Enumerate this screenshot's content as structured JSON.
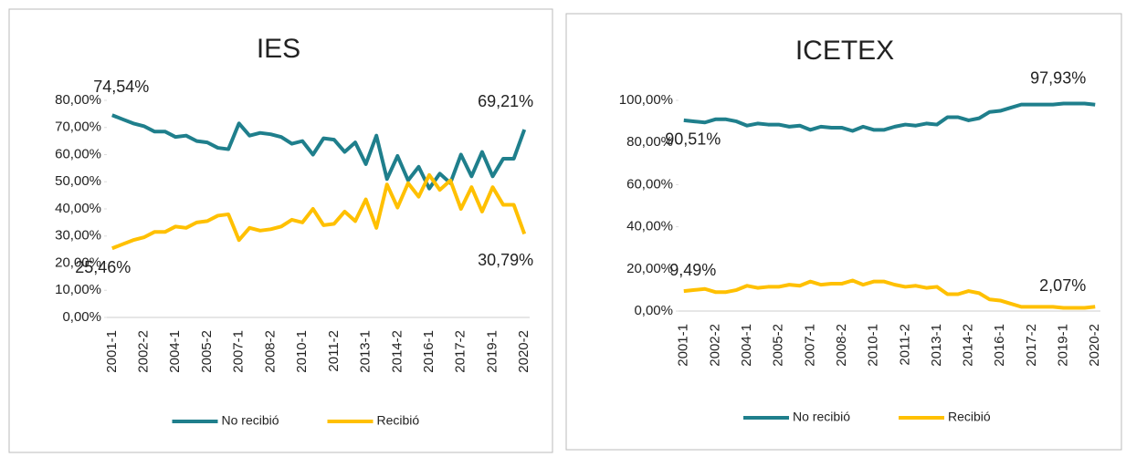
{
  "chart_data": [
    {
      "type": "line",
      "title": "IES",
      "categories": [
        "2001-1",
        null,
        null,
        "2002-2",
        null,
        null,
        "2004-1",
        null,
        null,
        "2005-2",
        null,
        null,
        "2007-1",
        null,
        null,
        "2008-2",
        null,
        null,
        "2010-1",
        null,
        null,
        "2011-2",
        null,
        null,
        "2013-1",
        null,
        null,
        "2014-2",
        null,
        null,
        "2016-1",
        null,
        null,
        "2017-2",
        null,
        null,
        "2019-1",
        null,
        null,
        "2020-2"
      ],
      "series": [
        {
          "name": "No recibió",
          "color": "#1f7f8c",
          "values": [
            74.54,
            73,
            71.5,
            70.5,
            68.5,
            68.5,
            66.5,
            67,
            65,
            64.5,
            62.5,
            62,
            71.5,
            67,
            68,
            67.5,
            66.5,
            64,
            65,
            60,
            66,
            65.5,
            61,
            64.5,
            56.5,
            67,
            51,
            59.5,
            50.5,
            55.5,
            47.5,
            53,
            49.5,
            60,
            52,
            61,
            52,
            58.5,
            58.5,
            69.21
          ],
          "value_labels": [
            "74,54%",
            null,
            null,
            null,
            null,
            null,
            null,
            null,
            null,
            null,
            null,
            null,
            null,
            null,
            null,
            null,
            null,
            null,
            null,
            null,
            null,
            null,
            null,
            null,
            null,
            null,
            null,
            null,
            null,
            null,
            null,
            null,
            null,
            null,
            null,
            null,
            null,
            null,
            null,
            "69,21%"
          ]
        },
        {
          "name": "Recibió",
          "color": "#ffc000",
          "values": [
            25.46,
            27,
            28.5,
            29.5,
            31.5,
            31.5,
            33.5,
            33,
            35,
            35.5,
            37.5,
            38,
            28.5,
            33,
            32,
            32.5,
            33.5,
            36,
            35,
            40,
            34,
            34.5,
            39,
            35.5,
            43.5,
            33,
            49,
            40.5,
            49.5,
            44.5,
            52.5,
            47,
            50.5,
            40,
            48,
            39,
            48,
            41.5,
            41.5,
            30.79
          ],
          "value_labels": [
            "25,46%",
            null,
            null,
            null,
            null,
            null,
            null,
            null,
            null,
            null,
            null,
            null,
            null,
            null,
            null,
            null,
            null,
            null,
            null,
            null,
            null,
            null,
            null,
            null,
            null,
            null,
            null,
            null,
            null,
            null,
            null,
            null,
            null,
            null,
            null,
            null,
            null,
            null,
            null,
            "30,79%"
          ]
        }
      ],
      "ylim": [
        0,
        80
      ],
      "yticks": [
        {
          "value": 0,
          "label": "0,00%"
        },
        {
          "value": 10,
          "label": "10,00%"
        },
        {
          "value": 20,
          "label": "20,00%"
        },
        {
          "value": 30,
          "label": "30,00%"
        },
        {
          "value": 40,
          "label": "40,00%"
        },
        {
          "value": 50,
          "label": "50,00%"
        },
        {
          "value": 60,
          "label": "60,00%"
        },
        {
          "value": 70,
          "label": "70,00%"
        },
        {
          "value": 80,
          "label": "80,00%"
        }
      ],
      "legend": "bottom"
    },
    {
      "type": "line",
      "title": "ICETEX",
      "categories": [
        "2001-1",
        null,
        null,
        "2002-2",
        null,
        null,
        "2004-1",
        null,
        null,
        "2005-2",
        null,
        null,
        "2007-1",
        null,
        null,
        "2008-2",
        null,
        null,
        "2010-1",
        null,
        null,
        "2011-2",
        null,
        null,
        "2013-1",
        null,
        null,
        "2014-2",
        null,
        null,
        "2016-1",
        null,
        null,
        "2017-2",
        null,
        null,
        "2019-1",
        null,
        null,
        "2020-2"
      ],
      "series": [
        {
          "name": "No recibió",
          "color": "#1f7f8c",
          "values": [
            90.51,
            90,
            89.5,
            91,
            91,
            90,
            88,
            89,
            88.5,
            88.5,
            87.5,
            88,
            86,
            87.5,
            87,
            87,
            85.5,
            87.5,
            86,
            86,
            87.5,
            88.5,
            88,
            89,
            88.5,
            92,
            92,
            90.5,
            91.5,
            94.5,
            95,
            96.5,
            98,
            98,
            98,
            98,
            98.5,
            98.5,
            98.5,
            97.93
          ],
          "value_labels": [
            "90,51%",
            null,
            null,
            null,
            null,
            null,
            null,
            null,
            null,
            null,
            null,
            null,
            null,
            null,
            null,
            null,
            null,
            null,
            null,
            null,
            null,
            null,
            null,
            null,
            null,
            null,
            null,
            null,
            null,
            null,
            null,
            null,
            null,
            null,
            null,
            null,
            null,
            null,
            null,
            "97,93%"
          ]
        },
        {
          "name": "Recibió",
          "color": "#ffc000",
          "values": [
            9.49,
            10,
            10.5,
            9,
            9,
            10,
            12,
            11,
            11.5,
            11.5,
            12.5,
            12,
            14,
            12.5,
            13,
            13,
            14.5,
            12.5,
            14,
            14,
            12.5,
            11.5,
            12,
            11,
            11.5,
            8,
            8,
            9.5,
            8.5,
            5.5,
            5,
            3.5,
            2,
            2,
            2,
            2,
            1.5,
            1.5,
            1.5,
            2.07
          ],
          "value_labels": [
            "9,49%",
            null,
            null,
            null,
            null,
            null,
            null,
            null,
            null,
            null,
            null,
            null,
            null,
            null,
            null,
            null,
            null,
            null,
            null,
            null,
            null,
            null,
            null,
            null,
            null,
            null,
            null,
            null,
            null,
            null,
            null,
            null,
            null,
            null,
            null,
            null,
            null,
            null,
            null,
            "2,07%"
          ]
        }
      ],
      "ylim": [
        0,
        100
      ],
      "yticks": [
        {
          "value": 0,
          "label": "0,00%"
        },
        {
          "value": 20,
          "label": "20,00%"
        },
        {
          "value": 40,
          "label": "40,00%"
        },
        {
          "value": 60,
          "label": "60,00%"
        },
        {
          "value": 80,
          "label": "80,00%"
        },
        {
          "value": 100,
          "label": "100,00%"
        }
      ],
      "legend": "bottom"
    }
  ]
}
